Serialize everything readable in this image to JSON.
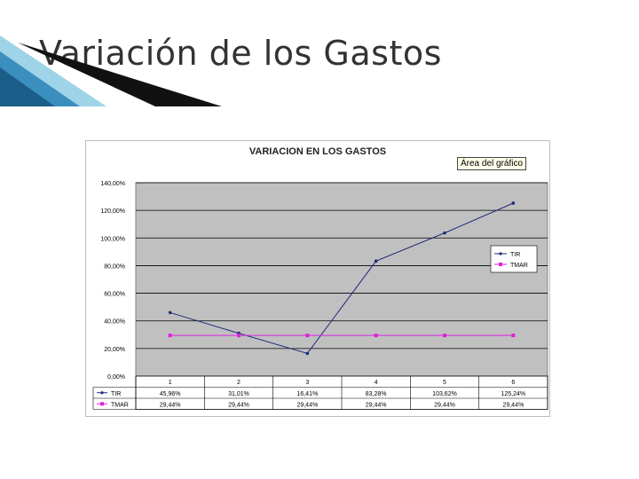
{
  "slide": {
    "title": "Variación de los Gastos"
  },
  "chart_data": {
    "type": "line",
    "title": "VARIACION EN LOS GASTOS",
    "hover_label": "Área del gráfico",
    "categories": [
      "1",
      "2",
      "3",
      "4",
      "5",
      "6"
    ],
    "ylim": [
      0,
      140
    ],
    "y_ticks": [
      "0,00%",
      "20,00%",
      "40,00%",
      "60,00%",
      "80,00%",
      "100,00%",
      "120,00%",
      "140,00%"
    ],
    "grid": true,
    "legend_position": "right",
    "series": [
      {
        "name": "TIR",
        "color": "#1f2a7a",
        "values": [
          45.96,
          31.01,
          16.41,
          83.28,
          103.62,
          125.24
        ],
        "labels": [
          "45,96%",
          "31,01%",
          "16,41%",
          "83,28%",
          "103,62%",
          "125,24%"
        ]
      },
      {
        "name": "TMAR",
        "color": "#e020e0",
        "values": [
          29.44,
          29.44,
          29.44,
          29.44,
          29.44,
          29.44
        ],
        "labels": [
          "29,44%",
          "29,44%",
          "29,44%",
          "29,44%",
          "29,44%",
          "29,44%"
        ]
      }
    ]
  }
}
